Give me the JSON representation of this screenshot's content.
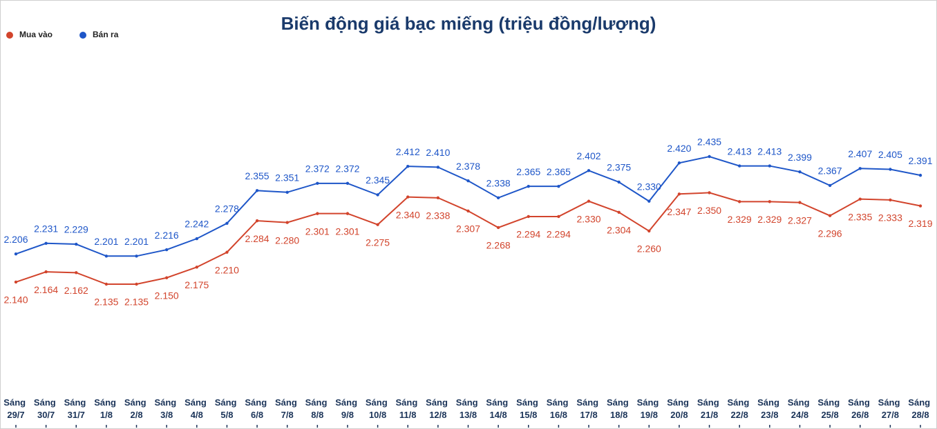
{
  "chart_data": {
    "type": "line",
    "title": "Biến động giá bạc miếng (triệu đồng/lượng)",
    "legend": "top-left",
    "categories": [
      "Sáng 29/7",
      "Sáng 30/7",
      "Sáng 31/7",
      "Sáng 1/8",
      "Sáng 2/8",
      "Sáng 3/8",
      "Sáng 4/8",
      "Sáng 5/8",
      "Sáng 6/8",
      "Sáng 7/8",
      "Sáng 8/8",
      "Sáng 9/8",
      "Sáng 10/8",
      "Sáng 11/8",
      "Sáng 12/8",
      "Sáng 13/8",
      "Sáng 14/8",
      "Sáng 15/8",
      "Sáng 16/8",
      "Sáng 17/8",
      "Sáng 18/8",
      "Sáng 19/8",
      "Sáng 20/8",
      "Sáng 21/8",
      "Sáng 22/8",
      "Sáng 23/8",
      "Sáng 24/8",
      "Sáng 25/8",
      "Sáng 26/8",
      "Sáng 27/8",
      "Sáng 28/8"
    ],
    "series": [
      {
        "name": "Mua vào",
        "color": "#d2442c",
        "label_position": "below",
        "values": [
          2.14,
          2.164,
          2.162,
          2.135,
          2.135,
          2.15,
          2.175,
          2.21,
          2.284,
          2.28,
          2.301,
          2.301,
          2.275,
          2.34,
          2.338,
          2.307,
          2.268,
          2.294,
          2.294,
          2.33,
          2.304,
          2.26,
          2.347,
          2.35,
          2.329,
          2.329,
          2.327,
          2.296,
          2.335,
          2.333,
          2.319
        ],
        "value_labels": [
          "2.140",
          "2.164",
          "2.162",
          "2.135",
          "2.135",
          "2.150",
          "2.175",
          "2.210",
          "2.284",
          "2.280",
          "2.301",
          "2.301",
          "2.275",
          "2.340",
          "2.338",
          "2.307",
          "2.268",
          "2.294",
          "2.294",
          "2.330",
          "2.304",
          "2.260",
          "2.347",
          "2.350",
          "2.329",
          "2.329",
          "2.327",
          "2.296",
          "2.335",
          "2.333",
          "2.319"
        ]
      },
      {
        "name": "Bán ra",
        "color": "#1e56c8",
        "label_position": "above",
        "values": [
          2.206,
          2.231,
          2.229,
          2.201,
          2.201,
          2.216,
          2.242,
          2.278,
          2.355,
          2.351,
          2.372,
          2.372,
          2.345,
          2.412,
          2.41,
          2.378,
          2.338,
          2.365,
          2.365,
          2.402,
          2.375,
          2.33,
          2.42,
          2.435,
          2.413,
          2.413,
          2.399,
          2.367,
          2.407,
          2.405,
          2.391
        ],
        "value_labels": [
          "2.206",
          "2.231",
          "2.229",
          "2.201",
          "2.201",
          "2.216",
          "2.242",
          "2.278",
          "2.355",
          "2.351",
          "2.372",
          "2.372",
          "2.345",
          "2.412",
          "2.410",
          "2.378",
          "2.338",
          "2.365",
          "2.365",
          "2.402",
          "2.375",
          "2.330",
          "2.420",
          "2.435",
          "2.413",
          "2.413",
          "2.399",
          "2.367",
          "2.407",
          "2.405",
          "2.391"
        ]
      }
    ]
  }
}
